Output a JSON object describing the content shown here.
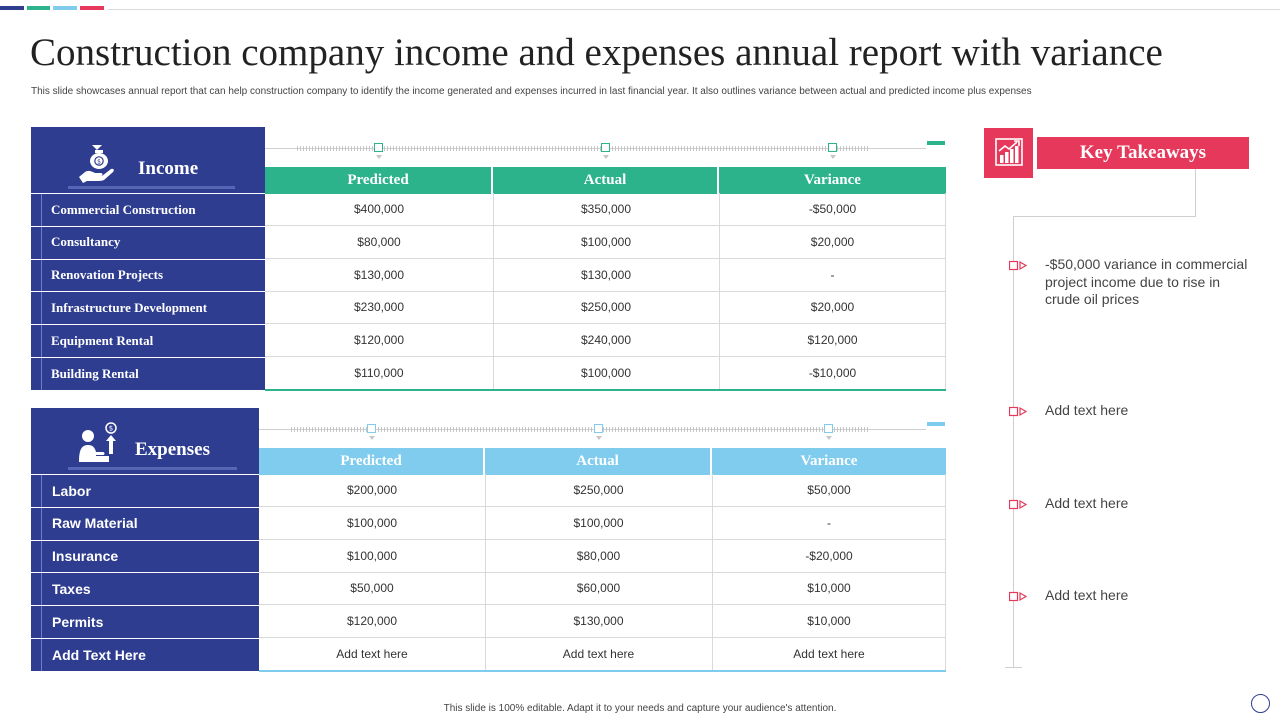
{
  "accent_colors": [
    "#2e3d8f",
    "#2db38b",
    "#7fccef",
    "#e5385a"
  ],
  "title": "Construction company income and expenses annual  report with variance",
  "subtitle": "This slide showcases annual report that can help construction company to identify the income  generated and expenses incurred in last financial year. It also outlines variance between actual and predicted income plus expenses",
  "income": {
    "heading": "Income",
    "icon": "money-bag-hand-icon",
    "columns": [
      "Predicted",
      "Actual",
      "Variance"
    ],
    "rows": [
      {
        "label": "Commercial Construction",
        "values": [
          "$400,000",
          "$350,000",
          "-$50,000"
        ]
      },
      {
        "label": "Consultancy",
        "values": [
          "$80,000",
          "$100,000",
          "$20,000"
        ]
      },
      {
        "label": "Renovation Projects",
        "values": [
          "$130,000",
          "$130,000",
          "-"
        ]
      },
      {
        "label": "Infrastructure Development",
        "values": [
          "$230,000",
          "$250,000",
          "$20,000"
        ]
      },
      {
        "label": "Equipment Rental",
        "values": [
          "$120,000",
          "$240,000",
          "$120,000"
        ]
      },
      {
        "label": "Building Rental",
        "values": [
          "$110,000",
          "$100,000",
          "-$10,000"
        ]
      }
    ]
  },
  "expenses": {
    "heading": "Expenses",
    "icon": "person-dollar-arrow-icon",
    "columns": [
      "Predicted",
      "Actual",
      "Variance"
    ],
    "rows": [
      {
        "label": "Labor",
        "values": [
          "$200,000",
          "$250,000",
          "$50,000"
        ]
      },
      {
        "label": "Raw Material",
        "values": [
          "$100,000",
          "$100,000",
          "-"
        ]
      },
      {
        "label": "Insurance",
        "values": [
          "$100,000",
          "$80,000",
          "-$20,000"
        ]
      },
      {
        "label": "Taxes",
        "values": [
          "$50,000",
          "$60,000",
          "$10,000"
        ]
      },
      {
        "label": "Permits",
        "values": [
          "$120,000",
          "$130,000",
          "$10,000"
        ]
      },
      {
        "label": "Add Text Here",
        "values": [
          "Add text here",
          "Add text here",
          "Add text here"
        ]
      }
    ]
  },
  "key_takeaways": {
    "heading": "Key Takeaways",
    "icon": "bar-chart-growth-icon",
    "items": [
      "-$50,000 variance in commercial project income due to rise in crude oil prices",
      "Add text here",
      "Add text here",
      "Add text here"
    ]
  },
  "footer": "This slide is 100% editable.  Adapt it to your needs and capture your audience's attention."
}
